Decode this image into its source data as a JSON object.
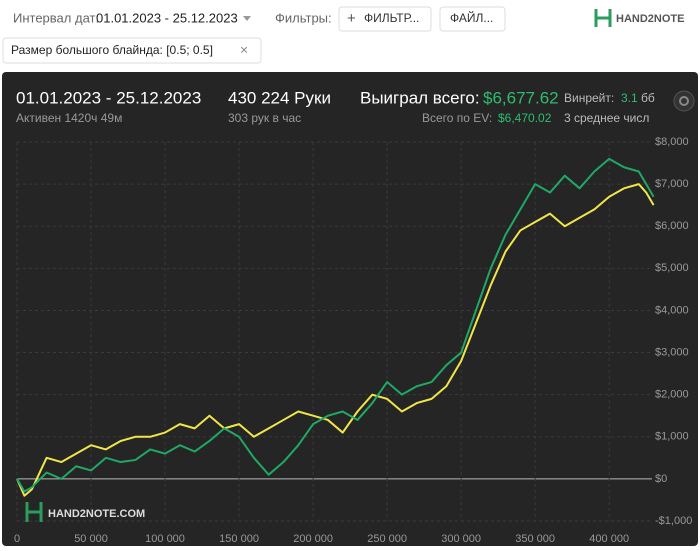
{
  "toolbar": {
    "date_label": "Интервал дат:",
    "date_range": "01.01.2023 - 25.12.2023",
    "filters_label": "Фильтры:",
    "filter_button": "ФИЛЬТР...",
    "file_button": "ФАЙЛ...",
    "logo": "HAND2NOTE"
  },
  "chip": "Размер большого блайнда: [0.5; 0.5]",
  "panel": {
    "date_range": "01.01.2023 - 25.12.2023",
    "active": "Активен 1420ч 49м",
    "hands": "430 224 Руки",
    "hands_per_hour": "303 рук в час",
    "won_label": "Выиграл всего:",
    "won_value": "$6,677.62",
    "winrate_label": "Винрейт:",
    "winrate_value": "3.1",
    "winrate_unit": "бб",
    "ev_label": "Всего по EV:",
    "ev_value": "$6,470.02",
    "avg_label": "3 среднее числ"
  },
  "chart_data": {
    "type": "line",
    "watermark": "HAND2NOTE.COM",
    "x": [
      0,
      5000,
      10000,
      20000,
      30000,
      40000,
      50000,
      60000,
      70000,
      80000,
      90000,
      100000,
      110000,
      120000,
      130000,
      140000,
      150000,
      160000,
      170000,
      180000,
      190000,
      200000,
      210000,
      220000,
      230000,
      240000,
      250000,
      260000,
      270000,
      280000,
      290000,
      300000,
      310000,
      320000,
      330000,
      340000,
      350000,
      360000,
      370000,
      380000,
      390000,
      400000,
      410000,
      420000,
      425000,
      430000
    ],
    "series": [
      {
        "color": "#1fa866",
        "values": [
          0,
          -300,
          -200,
          150,
          0,
          300,
          200,
          500,
          400,
          450,
          700,
          600,
          800,
          650,
          900,
          1200,
          1000,
          500,
          100,
          400,
          800,
          1300,
          1500,
          1600,
          1400,
          1800,
          2300,
          2000,
          2200,
          2300,
          2700,
          3000,
          4000,
          5000,
          5800,
          6400,
          7000,
          6800,
          7200,
          6900,
          7300,
          7600,
          7400,
          7300,
          7000,
          6700
        ]
      },
      {
        "color": "#f0e64a",
        "values": [
          0,
          -400,
          -250,
          500,
          400,
          600,
          800,
          700,
          900,
          1000,
          1000,
          1100,
          1300,
          1200,
          1500,
          1200,
          1300,
          1000,
          1200,
          1400,
          1600,
          1500,
          1400,
          1100,
          1600,
          2000,
          1900,
          1600,
          1800,
          1900,
          2200,
          2800,
          3700,
          4600,
          5400,
          5900,
          6100,
          6300,
          6000,
          6200,
          6400,
          6700,
          6900,
          7000,
          6800,
          6500
        ]
      }
    ],
    "xlim": [
      0,
      435000
    ],
    "ylim": [
      -1000,
      8000
    ],
    "xticks": [
      0,
      {
        "value": 50000,
        "label": "50 000"
      },
      {
        "value": 100000,
        "label": "100 000"
      },
      {
        "value": 150000,
        "label": "150 000"
      },
      {
        "value": 200000,
        "label": "200 000"
      },
      {
        "value": 250000,
        "label": "250 000"
      },
      {
        "value": 300000,
        "label": "300 000"
      },
      {
        "value": 350000,
        "label": "350 000"
      },
      {
        "value": 400000,
        "label": "400 000"
      }
    ],
    "yticks": [
      {
        "value": -1000,
        "label": "-$1,000"
      },
      {
        "value": 0,
        "label": "$0"
      },
      {
        "value": 1000,
        "label": "$1,000"
      },
      {
        "value": 2000,
        "label": "$2,000"
      },
      {
        "value": 3000,
        "label": "$3,000"
      },
      {
        "value": 4000,
        "label": "$4,000"
      },
      {
        "value": 5000,
        "label": "$5,000"
      },
      {
        "value": 6000,
        "label": "$6,000"
      },
      {
        "value": 7000,
        "label": "$7,000"
      },
      {
        "value": 8000,
        "label": "$8,000"
      }
    ],
    "grid": true
  }
}
